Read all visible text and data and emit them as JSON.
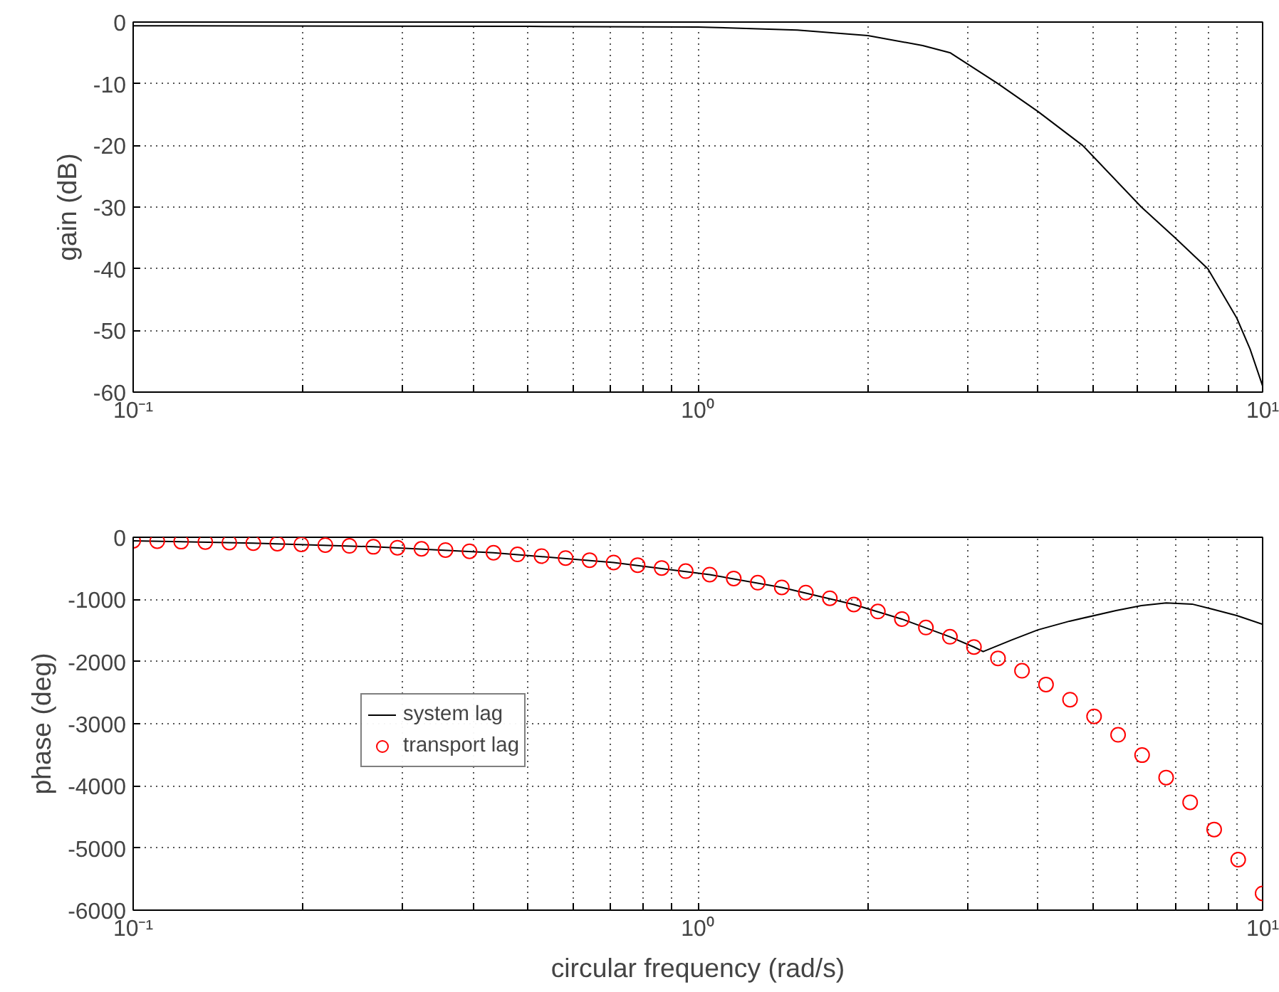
{
  "chart_data": [
    {
      "type": "line",
      "ylabel": "gain (dB)",
      "log": "x",
      "grid": true,
      "xlim": [
        0.1,
        10
      ],
      "ylim": [
        -60,
        0
      ],
      "xticks": [
        {
          "value": 0.1,
          "label": "10⁻¹"
        },
        {
          "value": 0.2,
          "label": null
        },
        {
          "value": 0.3,
          "label": null
        },
        {
          "value": 0.4,
          "label": null
        },
        {
          "value": 0.5,
          "label": null
        },
        {
          "value": 0.6,
          "label": null
        },
        {
          "value": 0.7,
          "label": null
        },
        {
          "value": 0.8,
          "label": null
        },
        {
          "value": 0.9,
          "label": null
        },
        {
          "value": 1,
          "label": "10⁰"
        },
        {
          "value": 2,
          "label": null
        },
        {
          "value": 3,
          "label": null
        },
        {
          "value": 4,
          "label": null
        },
        {
          "value": 5,
          "label": null
        },
        {
          "value": 6,
          "label": null
        },
        {
          "value": 7,
          "label": null
        },
        {
          "value": 8,
          "label": null
        },
        {
          "value": 9,
          "label": null
        },
        {
          "value": 10,
          "label": "10¹"
        }
      ],
      "yticks": [
        -60,
        -50,
        -40,
        -30,
        -20,
        -10,
        0
      ],
      "series": [
        {
          "color": "#000000",
          "x": [
            0.1,
            0.5,
            1,
            1.5,
            2,
            2.5,
            2.8,
            3.4,
            4,
            4.8,
            6.1,
            7,
            8,
            9,
            9.5,
            10
          ],
          "values": [
            -0.6,
            -0.7,
            -0.8,
            -1.3,
            -2.2,
            -3.8,
            -5,
            -10,
            -14.5,
            -20,
            -30,
            -35,
            -40,
            -48,
            -53,
            -59
          ]
        }
      ]
    },
    {
      "type": "line",
      "xlabel": "circular frequency (rad/s)",
      "ylabel": "phase (deg)",
      "log": "x",
      "grid": true,
      "legend": "left",
      "xlim": [
        0.1,
        10
      ],
      "ylim": [
        -6000,
        0
      ],
      "xticks": [
        {
          "value": 0.1,
          "label": "10⁻¹"
        },
        {
          "value": 0.2,
          "label": null
        },
        {
          "value": 0.3,
          "label": null
        },
        {
          "value": 0.4,
          "label": null
        },
        {
          "value": 0.5,
          "label": null
        },
        {
          "value": 0.6,
          "label": null
        },
        {
          "value": 0.7,
          "label": null
        },
        {
          "value": 0.8,
          "label": null
        },
        {
          "value": 0.9,
          "label": null
        },
        {
          "value": 1,
          "label": "10⁰"
        },
        {
          "value": 2,
          "label": null
        },
        {
          "value": 3,
          "label": null
        },
        {
          "value": 4,
          "label": null
        },
        {
          "value": 5,
          "label": null
        },
        {
          "value": 6,
          "label": null
        },
        {
          "value": 7,
          "label": null
        },
        {
          "value": 8,
          "label": null
        },
        {
          "value": 9,
          "label": null
        },
        {
          "value": 10,
          "label": "10¹"
        }
      ],
      "yticks": [
        -6000,
        -5000,
        -4000,
        -3000,
        -2000,
        -1000,
        0
      ],
      "series": [
        {
          "name": "system lag",
          "type": "line",
          "color": "#000000",
          "x": [
            0.1,
            0.1632,
            0.2663,
            0.4346,
            0.7092,
            1.0494,
            1.4079,
            1.8887,
            2.2974,
            2.7946,
            3.0821,
            3.2,
            3.6,
            4,
            4.55,
            5.5,
            6.1,
            6.75,
            7.5,
            8.1,
            9,
            10
          ],
          "values": [
            -57,
            -94,
            -153,
            -249,
            -406,
            -601,
            -807,
            -1082,
            -1316,
            -1601,
            -1766,
            -1840,
            -1650,
            -1490,
            -1350,
            -1180,
            -1100,
            -1055,
            -1075,
            -1150,
            -1260,
            -1400
          ]
        },
        {
          "name": "transport lag",
          "type": "scatter",
          "marker": "circle",
          "color": "#ff0000",
          "x": [
            0.1,
            0.1103,
            0.1216,
            0.1342,
            0.148,
            0.1632,
            0.18,
            0.1985,
            0.2189,
            0.2415,
            0.2663,
            0.2937,
            0.324,
            0.3573,
            0.3941,
            0.4346,
            0.4793,
            0.5287,
            0.5831,
            0.6431,
            0.7092,
            0.7822,
            0.8627,
            0.9515,
            1.0494,
            1.1574,
            1.2765,
            1.4079,
            1.5527,
            1.7125,
            1.8887,
            2.0831,
            2.2974,
            2.5338,
            2.7946,
            3.0821,
            3.3993,
            3.749,
            4.1348,
            4.5602,
            5.0295,
            5.547,
            6.1178,
            6.7473,
            7.4416,
            8.2073,
            9.0518,
            10
          ],
          "values": [
            -57,
            -63,
            -70,
            -77,
            -85,
            -94,
            -103,
            -114,
            -125,
            -138,
            -153,
            -168,
            -186,
            -205,
            -226,
            -249,
            -275,
            -303,
            -334,
            -368,
            -406,
            -448,
            -494,
            -545,
            -601,
            -663,
            -731,
            -807,
            -890,
            -981,
            -1082,
            -1194,
            -1316,
            -1452,
            -1601,
            -1766,
            -1948,
            -2148,
            -2369,
            -2613,
            -2882,
            -3178,
            -3505,
            -3866,
            -4264,
            -4702,
            -5186,
            -5730
          ]
        }
      ]
    }
  ]
}
